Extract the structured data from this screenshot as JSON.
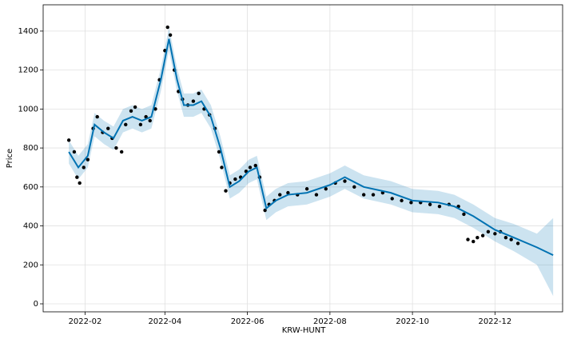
{
  "chart_data": {
    "type": "forecast",
    "xlabel": "KRW-HUNT",
    "ylabel": "Price",
    "xlim": [
      "2022-01-01",
      "2023-01-20"
    ],
    "ylim": [
      -41,
      1535
    ],
    "xticks": [
      {
        "value": "2022-02-01",
        "label": "2022-02"
      },
      {
        "value": "2022-04-01",
        "label": "2022-04"
      },
      {
        "value": "2022-06-01",
        "label": "2022-06"
      },
      {
        "value": "2022-08-01",
        "label": "2022-08"
      },
      {
        "value": "2022-10-01",
        "label": "2022-10"
      },
      {
        "value": "2022-12-01",
        "label": "2022-12"
      }
    ],
    "yticks": [
      0,
      200,
      400,
      600,
      800,
      1000,
      1200,
      1400
    ],
    "grid": true,
    "observed": {
      "color": "#000000",
      "x": [
        "2022-01-20",
        "2022-01-24",
        "2022-01-26",
        "2022-01-28",
        "2022-01-31",
        "2022-02-03",
        "2022-02-07",
        "2022-02-10",
        "2022-02-14",
        "2022-02-18",
        "2022-02-21",
        "2022-02-24",
        "2022-02-28",
        "2022-03-03",
        "2022-03-07",
        "2022-03-10",
        "2022-03-14",
        "2022-03-18",
        "2022-03-21",
        "2022-03-25",
        "2022-03-28",
        "2022-04-01",
        "2022-04-03",
        "2022-04-05",
        "2022-04-08",
        "2022-04-11",
        "2022-04-14",
        "2022-04-18",
        "2022-04-22",
        "2022-04-26",
        "2022-04-30",
        "2022-05-04",
        "2022-05-08",
        "2022-05-11",
        "2022-05-13",
        "2022-05-16",
        "2022-05-19",
        "2022-05-23",
        "2022-05-27",
        "2022-05-31",
        "2022-06-03",
        "2022-06-07",
        "2022-06-10",
        "2022-06-14",
        "2022-06-17",
        "2022-06-21",
        "2022-06-25",
        "2022-07-01",
        "2022-07-08",
        "2022-07-15",
        "2022-07-22",
        "2022-07-29",
        "2022-08-05",
        "2022-08-12",
        "2022-08-19",
        "2022-08-26",
        "2022-09-02",
        "2022-09-09",
        "2022-09-16",
        "2022-09-23",
        "2022-09-30",
        "2022-10-07",
        "2022-10-14",
        "2022-10-21",
        "2022-10-28",
        "2022-11-04",
        "2022-11-08",
        "2022-11-11",
        "2022-11-15",
        "2022-11-18",
        "2022-11-22",
        "2022-11-26",
        "2022-12-01",
        "2022-12-05",
        "2022-12-09",
        "2022-12-13",
        "2022-12-18"
      ],
      "values": [
        840,
        780,
        650,
        620,
        700,
        740,
        900,
        960,
        880,
        900,
        850,
        800,
        780,
        920,
        990,
        1010,
        920,
        960,
        940,
        1000,
        1150,
        1300,
        1420,
        1380,
        1200,
        1090,
        1050,
        1020,
        1040,
        1080,
        1000,
        970,
        900,
        780,
        700,
        580,
        620,
        640,
        650,
        680,
        700,
        710,
        650,
        480,
        510,
        530,
        560,
        570,
        560,
        590,
        560,
        590,
        620,
        630,
        600,
        560,
        560,
        570,
        540,
        530,
        520,
        520,
        510,
        500,
        510,
        500,
        460,
        330,
        320,
        340,
        350,
        370,
        360,
        370,
        340,
        330,
        310
      ]
    },
    "forecast": {
      "color": "#0072B2",
      "band_color": "#0072B2",
      "x": [
        "2022-01-20",
        "2022-01-27",
        "2022-02-03",
        "2022-02-08",
        "2022-02-15",
        "2022-02-22",
        "2022-03-01",
        "2022-03-08",
        "2022-03-15",
        "2022-03-22",
        "2022-03-29",
        "2022-04-04",
        "2022-04-10",
        "2022-04-15",
        "2022-04-22",
        "2022-04-28",
        "2022-05-05",
        "2022-05-12",
        "2022-05-19",
        "2022-05-26",
        "2022-06-02",
        "2022-06-08",
        "2022-06-15",
        "2022-06-22",
        "2022-07-01",
        "2022-07-15",
        "2022-08-01",
        "2022-08-12",
        "2022-08-26",
        "2022-09-15",
        "2022-10-01",
        "2022-10-20",
        "2022-11-01",
        "2022-11-15",
        "2022-12-01",
        "2022-12-15",
        "2023-01-01",
        "2023-01-13"
      ],
      "values": [
        780,
        700,
        760,
        920,
        880,
        850,
        940,
        960,
        940,
        960,
        1150,
        1360,
        1150,
        1020,
        1020,
        1040,
        960,
        800,
        600,
        630,
        680,
        700,
        490,
        530,
        560,
        570,
        610,
        650,
        600,
        570,
        530,
        520,
        500,
        450,
        380,
        340,
        290,
        250
      ],
      "upper": [
        840,
        760,
        820,
        980,
        940,
        910,
        1000,
        1020,
        1000,
        1020,
        1210,
        1420,
        1210,
        1080,
        1080,
        1100,
        1020,
        860,
        660,
        690,
        740,
        760,
        550,
        590,
        620,
        630,
        670,
        710,
        660,
        630,
        590,
        580,
        560,
        510,
        440,
        410,
        360,
        440
      ],
      "lower": [
        720,
        640,
        700,
        860,
        820,
        790,
        880,
        900,
        880,
        900,
        1090,
        1300,
        1090,
        960,
        960,
        980,
        900,
        740,
        540,
        570,
        620,
        640,
        430,
        470,
        500,
        510,
        550,
        590,
        540,
        510,
        470,
        460,
        440,
        390,
        320,
        270,
        200,
        40
      ]
    }
  }
}
